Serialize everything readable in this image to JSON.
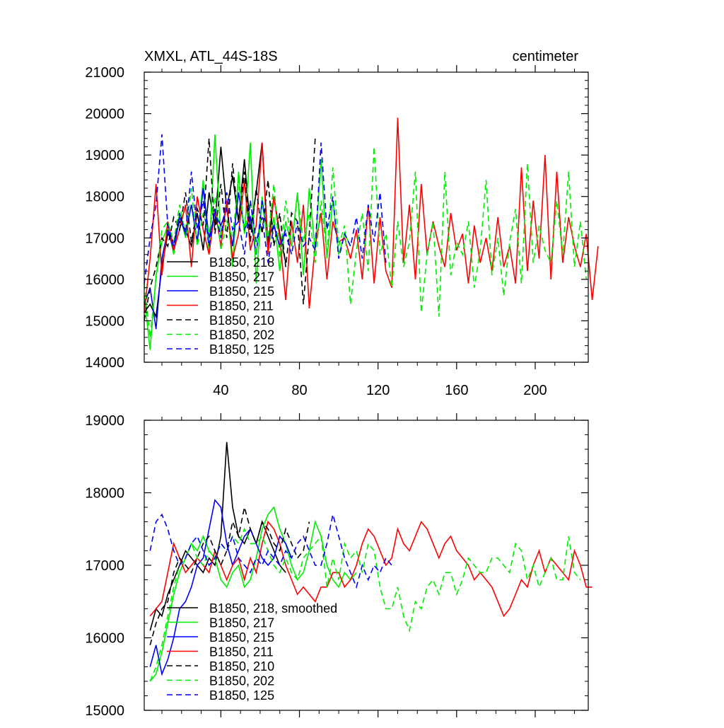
{
  "colors": {
    "black": "#000000",
    "green": "#00ee00",
    "blue": "#0000ff",
    "red": "#ff0000"
  },
  "chart_data": [
    {
      "type": "line",
      "title": "XMXL, ATL_44S-18S",
      "units": "centimeter",
      "xlabel": "",
      "ylabel": "",
      "xlim": [
        1,
        227
      ],
      "ylim": [
        14000,
        21000
      ],
      "xticks": [
        40,
        80,
        120,
        160,
        200
      ],
      "xtick_labels": [
        "40",
        "80",
        "120",
        "160",
        "200"
      ],
      "yticks": [
        14000,
        15000,
        16000,
        17000,
        18000,
        19000,
        20000,
        21000
      ],
      "ytick_labels": [
        "14000",
        "15000",
        "16000",
        "17000",
        "18000",
        "19000",
        "20000",
        "21000"
      ],
      "legend_position": "lower-left",
      "series": [
        {
          "name": "B1850, 218",
          "color": "#000000",
          "dash": "solid",
          "x_start": 1,
          "x_step": 3,
          "values": [
            15200,
            15400,
            15100,
            16300,
            17100,
            16900,
            17400,
            17200,
            16800,
            17600,
            16700,
            18100,
            17300,
            19200,
            17700,
            18500,
            17400,
            18900,
            17200,
            18100,
            19300,
            16800,
            18000,
            17100,
            16400
          ]
        },
        {
          "name": "B1850, 217",
          "color": "#00ee00",
          "dash": "solid",
          "x_start": 1,
          "x_step": 3,
          "values": [
            15600,
            14300,
            16100,
            16900,
            17300,
            16600,
            17600,
            17000,
            17800,
            16900,
            18400,
            16600,
            19500,
            17000,
            17900,
            16300,
            18600,
            17100,
            19300,
            15900,
            18000,
            16700,
            17500,
            16200,
            17400,
            16800,
            18100,
            16100,
            18200,
            16700,
            18900,
            16500,
            17900,
            16600,
            17100,
            16800
          ]
        },
        {
          "name": "B1850, 215",
          "color": "#0000ff",
          "dash": "solid",
          "x_start": 1,
          "x_step": 3,
          "values": [
            15400,
            15800,
            14800,
            16500,
            17200,
            16700,
            17500,
            17100,
            17800,
            16900,
            18200,
            17000,
            17600,
            17300,
            17700,
            16800,
            18100,
            17200,
            17500,
            16600,
            17900,
            17000,
            17300,
            16800,
            17200
          ]
        },
        {
          "name": "B1850, 211",
          "color": "#ff0000",
          "dash": "solid",
          "x_start": 1,
          "x_step": 3,
          "values": [
            15200,
            16500,
            18300,
            16100,
            17400,
            16700,
            17200,
            17800,
            16300,
            18000,
            17200,
            16600,
            17700,
            16800,
            17900,
            16500,
            17100,
            18400,
            16700,
            17300,
            19300,
            16600,
            18000,
            17000,
            15500,
            17400,
            16400,
            17800,
            15300,
            16800,
            17600,
            16000,
            17400,
            16900,
            17000,
            16500,
            17200,
            16000,
            17800,
            15900,
            17500,
            16200,
            15800,
            19900,
            16400,
            17800,
            16000,
            18300,
            16600,
            17400,
            16800,
            16300,
            17600,
            16700,
            17100,
            15900,
            17300,
            16400,
            17000,
            16200,
            17500,
            16300,
            16800,
            15900,
            18700,
            16200,
            17900,
            16500,
            19000,
            16000,
            18600,
            16400,
            17500,
            16800,
            16300,
            17100,
            15500,
            16800
          ]
        },
        {
          "name": "B1850, 210",
          "color": "#000000",
          "dash": "dashed",
          "x_start": 1,
          "x_step": 3,
          "values": [
            15000,
            15800,
            16300,
            17000,
            16800,
            17500,
            17200,
            18100,
            16900,
            17700,
            17300,
            19400,
            17100,
            18300,
            17000,
            18800,
            17400,
            18600,
            16900,
            18200,
            17100,
            18400,
            16800,
            17600,
            16300,
            17600,
            17400,
            15400,
            17100,
            19400
          ]
        },
        {
          "name": "B1850, 202",
          "color": "#00ee00",
          "dash": "dashed",
          "x_start": 1,
          "x_step": 3,
          "values": [
            15900,
            14600,
            16000,
            17200,
            17400,
            16900,
            17800,
            17100,
            18200,
            16800,
            17600,
            17100,
            18000,
            16700,
            17400,
            17000,
            18400,
            17100,
            17900,
            16600,
            17800,
            17000,
            18300,
            16500,
            17900,
            16800,
            18000,
            16900,
            17600,
            16400,
            17900,
            16600,
            18700,
            16800,
            17300,
            15400,
            16700,
            17600,
            16200,
            19200,
            16600,
            17100,
            15800,
            17400,
            16300,
            16900,
            18600,
            15200,
            16600,
            17400,
            15100,
            18600,
            16100,
            16900,
            16600,
            17400,
            15800,
            16700,
            18400,
            16100,
            17000,
            15600,
            16900,
            17700,
            15900,
            18800,
            16400,
            17300,
            16700,
            16400,
            17900,
            16600,
            18600,
            16300,
            17400,
            16000
          ]
        },
        {
          "name": "B1850, 125",
          "color": "#0000ff",
          "dash": "dashed",
          "x_start": 1,
          "x_step": 3,
          "values": [
            15900,
            17000,
            17800,
            19500,
            17300,
            16800,
            17600,
            17100,
            18600,
            17200,
            17900,
            16800,
            17700,
            17000,
            18100,
            17200,
            17400,
            16600,
            17900,
            16900,
            17500,
            16400,
            17300,
            16800,
            17100,
            16600,
            17400,
            16800,
            17000,
            16700,
            19300,
            17200,
            18000,
            16500,
            17100,
            16800,
            17500,
            16500,
            17800,
            16900,
            18100,
            16400
          ]
        }
      ]
    },
    {
      "type": "line",
      "title": "",
      "xlabel": "",
      "ylabel": "",
      "xlim": [
        1,
        227
      ],
      "ylim": [
        15000,
        19000
      ],
      "xticks": [
        40,
        80,
        120,
        160,
        200
      ],
      "xtick_labels": [],
      "yticks": [
        15000,
        16000,
        17000,
        18000,
        19000
      ],
      "ytick_labels": [
        "15000",
        "16000",
        "17000",
        "18000",
        "19000"
      ],
      "legend_position": "lower-left",
      "series": [
        {
          "name": "B1850, 218, smoothed",
          "color": "#000000",
          "dash": "solid",
          "x_start": 4,
          "x_step": 3,
          "values": [
            16100,
            16400,
            16300,
            16600,
            16800,
            17000,
            17200,
            17100,
            17000,
            16900,
            17100,
            17000,
            17400,
            18700,
            17800,
            17400,
            17300,
            17500,
            17300,
            17600,
            17400,
            17200,
            17000,
            16900
          ]
        },
        {
          "name": "B1850, 217",
          "color": "#00ee00",
          "dash": "solid",
          "x_start": 4,
          "x_step": 3,
          "values": [
            15400,
            15500,
            15800,
            16200,
            16600,
            16900,
            17100,
            17300,
            17200,
            17400,
            17200,
            17100,
            16800,
            16700,
            16900,
            17000,
            16700,
            16800,
            17100,
            17500,
            17700,
            17800,
            17500,
            17300,
            17000,
            16800,
            16900,
            17200,
            17600,
            17400,
            17000,
            16800,
            16700,
            16900,
            16800,
            16900
          ]
        },
        {
          "name": "B1850, 215",
          "color": "#0000ff",
          "dash": "solid",
          "x_start": 4,
          "x_step": 3,
          "values": [
            15600,
            15900,
            15500,
            15700,
            16000,
            16400,
            16500,
            16700,
            17000,
            17100,
            17500,
            17900,
            17800,
            17300,
            17000,
            17200,
            17400,
            17500,
            17300,
            17100,
            17000,
            17100,
            17400,
            17300,
            17100
          ]
        },
        {
          "name": "B1850, 211",
          "color": "#ff0000",
          "dash": "solid",
          "x_start": 4,
          "x_step": 3,
          "values": [
            16300,
            16400,
            16500,
            16900,
            17300,
            17100,
            16900,
            17000,
            17100,
            17000,
            16900,
            17200,
            17000,
            16800,
            17000,
            17100,
            16800,
            17100,
            16900,
            17300,
            17600,
            17500,
            17300,
            17000,
            16800,
            16600,
            16700,
            16600,
            16500,
            16700,
            16700,
            16900,
            16900,
            16700,
            16800,
            17000,
            17300,
            17500,
            17400,
            17200,
            17000,
            17100,
            17500,
            17300,
            17200,
            17400,
            17600,
            17500,
            17300,
            17100,
            17300,
            17400,
            17200,
            17100,
            17000,
            16800,
            16900,
            16800,
            16700,
            16500,
            16300,
            16400,
            16600,
            16800,
            16700,
            17000,
            17200,
            16900,
            17100,
            17000,
            16900,
            16800,
            17200,
            17000,
            16700,
            16700
          ]
        },
        {
          "name": "B1850, 210",
          "color": "#000000",
          "dash": "dashed",
          "x_start": 4,
          "x_step": 3,
          "values": [
            15900,
            16200,
            16400,
            16500,
            16900,
            17100,
            17000,
            16900,
            17100,
            17300,
            17400,
            17200,
            17000,
            17200,
            17600,
            17400,
            17800,
            17500,
            17300,
            17600,
            17500,
            17300,
            17200,
            17500,
            17300,
            17100,
            17200,
            17600
          ]
        },
        {
          "name": "B1850, 202",
          "color": "#00ee00",
          "dash": "dashed",
          "x_start": 4,
          "x_step": 3,
          "values": [
            15400,
            15600,
            15900,
            16300,
            16700,
            17000,
            17100,
            17300,
            17100,
            17000,
            17200,
            17100,
            17300,
            17200,
            17400,
            17300,
            17500,
            17300,
            17300,
            17400,
            17200,
            17000,
            16900,
            17100,
            16900,
            16800,
            17100,
            17200,
            17300,
            17400,
            16700,
            17100,
            16800,
            17300,
            17100,
            17200,
            16900,
            17300,
            17200,
            16700,
            16400,
            16400,
            16700,
            16300,
            16100,
            16500,
            16400,
            16700,
            16800,
            16600,
            16900,
            16900,
            16600,
            16800,
            17100,
            17000,
            16900,
            16900,
            17100,
            17100,
            17000,
            16900,
            17300,
            17200,
            16800,
            17000,
            16700,
            16900,
            17100,
            16800,
            16800,
            17400,
            16900,
            16800
          ]
        },
        {
          "name": "B1850, 125",
          "color": "#0000ff",
          "dash": "dashed",
          "x_start": 4,
          "x_step": 3,
          "values": [
            17200,
            17600,
            17700,
            17500,
            17200,
            17000,
            17100,
            17300,
            17400,
            17200,
            17000,
            17100,
            17300,
            17200,
            17400,
            17100,
            17000,
            16900,
            17100,
            17000,
            17200,
            17100,
            17000,
            17200,
            17100,
            17300,
            17400,
            17200,
            17000,
            17000,
            17300,
            17700,
            17400,
            17100,
            16900,
            16700,
            17000,
            16800,
            17000,
            16900,
            17100,
            17000
          ]
        }
      ]
    }
  ]
}
